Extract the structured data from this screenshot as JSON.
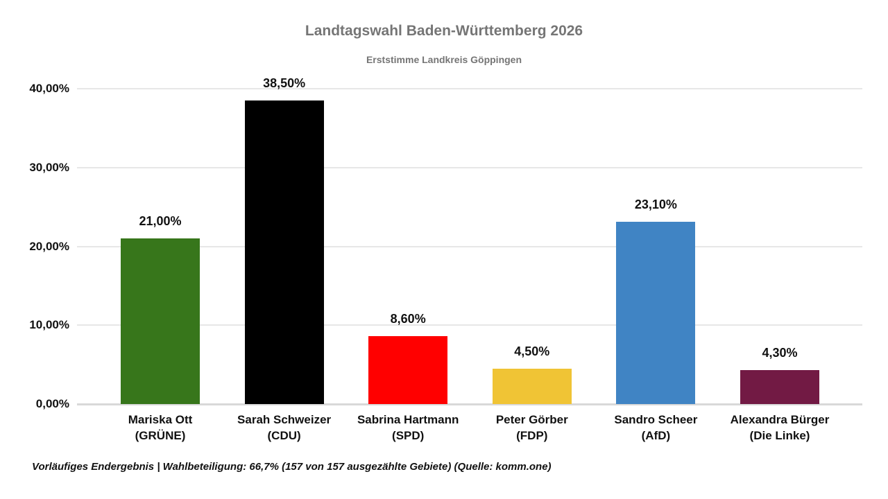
{
  "header": {
    "title": "Landtagswahl Baden-Württemberg 2026",
    "subtitle": "Erststimme Landkreis Göppingen"
  },
  "chart_data": {
    "type": "bar",
    "title": "Landtagswahl Baden-Württemberg 2026",
    "subtitle": "Erststimme Landkreis Göppingen",
    "xlabel": "",
    "ylabel": "",
    "ylim": [
      0,
      40
    ],
    "grid": true,
    "legend": false,
    "value_label_format": "de-percent-2-decimals",
    "yticks": [
      {
        "value": 0,
        "label": "0,00%"
      },
      {
        "value": 10,
        "label": "10,00%"
      },
      {
        "value": 20,
        "label": "20,00%"
      },
      {
        "value": 30,
        "label": "30,00%"
      },
      {
        "value": 40,
        "label": "40,00%"
      }
    ],
    "categories": [
      {
        "candidate": "Mariska Ott",
        "party": "GRÜNE",
        "party_label": "(GRÜNE)",
        "value": 21.0,
        "value_label": "21,00%",
        "color": "#37761b"
      },
      {
        "candidate": "Sarah Schweizer",
        "party": "CDU",
        "party_label": "(CDU)",
        "value": 38.5,
        "value_label": "38,50%",
        "color": "#000000"
      },
      {
        "candidate": "Sabrina Hartmann",
        "party": "SPD",
        "party_label": "(SPD)",
        "value": 8.6,
        "value_label": "8,60%",
        "color": "#ff0000"
      },
      {
        "candidate": "Peter Görber",
        "party": "FDP",
        "party_label": "(FDP)",
        "value": 4.5,
        "value_label": "4,50%",
        "color": "#f0c435"
      },
      {
        "candidate": "Sandro Scheer",
        "party": "AfD",
        "party_label": "(AfD)",
        "value": 23.1,
        "value_label": "23,10%",
        "color": "#4084c4"
      },
      {
        "candidate": "Alexandra Bürger",
        "party": "Die Linke",
        "party_label": "(Die Linke)",
        "value": 4.3,
        "value_label": "4,30%",
        "color": "#721a44"
      }
    ]
  },
  "footer": {
    "note": "Vorläufiges Endergebnis | Wahlbeteiligung: 66,7% (157 von 157 ausgezählte Gebiete) (Quelle: komm.one)"
  }
}
